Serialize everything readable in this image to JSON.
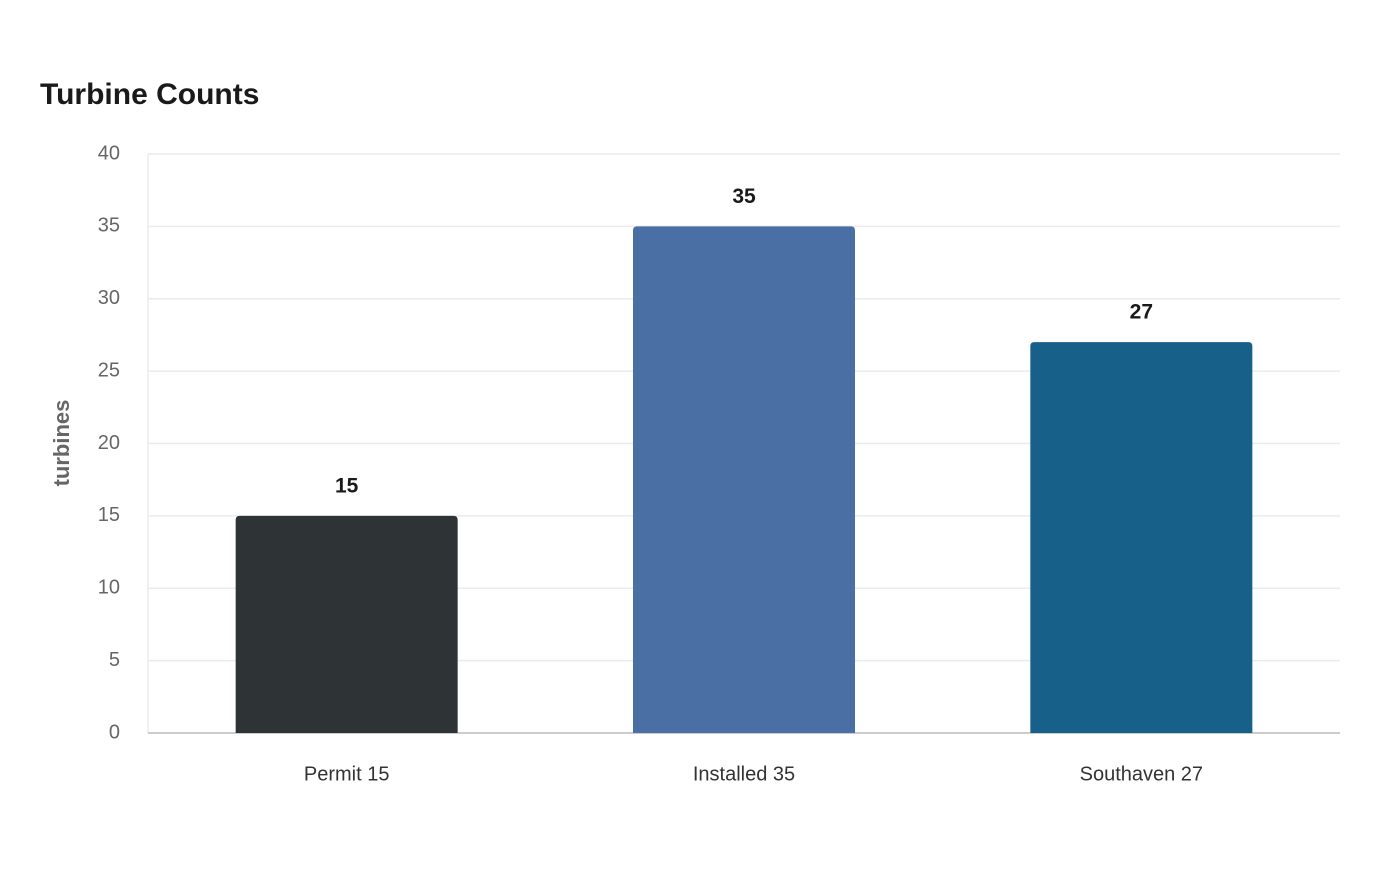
{
  "chart_data": {
    "type": "bar",
    "title": "Turbine Counts",
    "y_label": "turbines",
    "categories": [
      "Permit 15",
      "Installed 35",
      "Southaven 27"
    ],
    "values": [
      15,
      35,
      27
    ],
    "colors": [
      "#2e3436",
      "#4a6fa5",
      "#176089"
    ],
    "ylim": [
      0,
      40
    ],
    "yticks": [
      0,
      5,
      10,
      15,
      20,
      25,
      30,
      35,
      40
    ],
    "grid": true
  }
}
